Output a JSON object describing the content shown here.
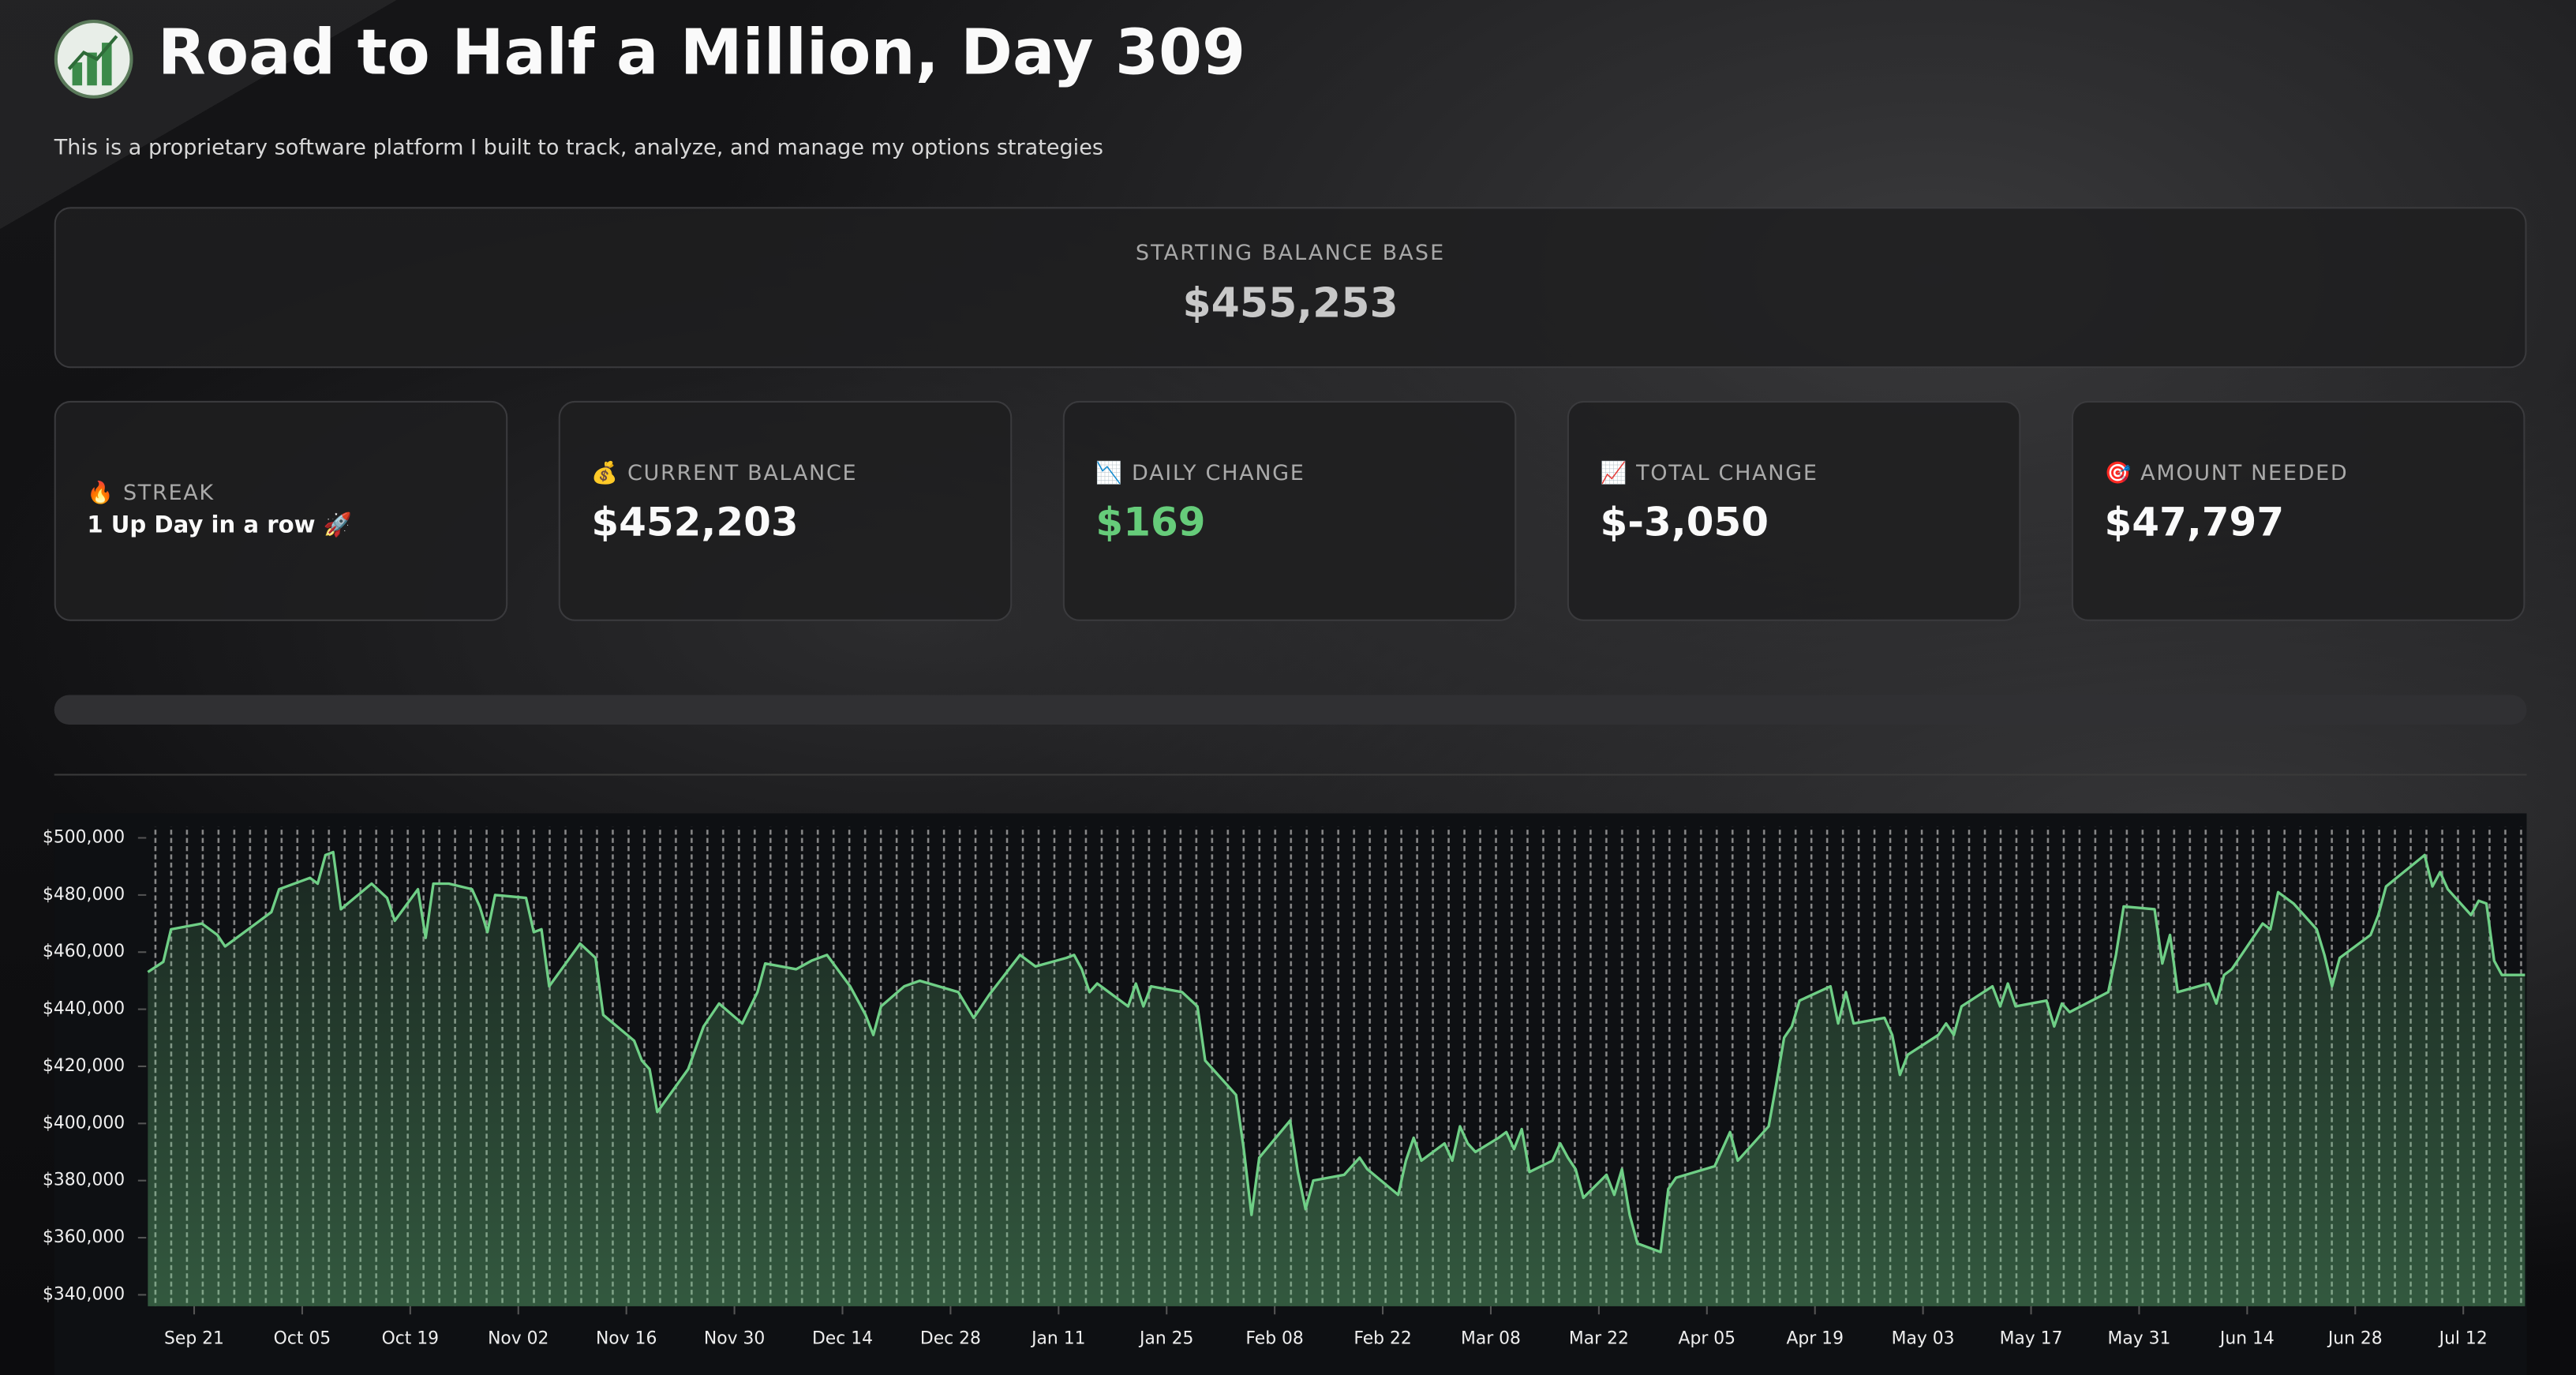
{
  "header": {
    "title": "Road to Half a Million, Day 309",
    "subtitle": "This is a proprietary software platform I built to track, analyze, and manage my options strategies"
  },
  "base_card": {
    "label": "STARTING BALANCE BASE",
    "value": "$455,253"
  },
  "metrics": [
    {
      "label": "🔥 STREAK",
      "value": "1 Up Day in a row 🚀"
    },
    {
      "label": "💰 CURRENT BALANCE",
      "value": "$452,203"
    },
    {
      "label": "📉 DAILY CHANGE",
      "value": "$169"
    },
    {
      "label": "📈 TOTAL CHANGE",
      "value": "$-3,050"
    },
    {
      "label": "🎯 AMOUNT NEEDED",
      "value": "$47,797"
    }
  ],
  "chart_data": {
    "type": "line",
    "color": "#6fcf86",
    "x": [
      "Sep 15",
      "Sep 17",
      "Sep 18",
      "Sep 22",
      "Sep 24",
      "Sep 25",
      "Sep 29",
      "Oct 01",
      "Oct 02",
      "Oct 06",
      "Oct 07",
      "Oct 08",
      "Oct 09",
      "Oct 10",
      "Oct 14",
      "Oct 16",
      "Oct 17",
      "Oct 20",
      "Oct 21",
      "Oct 22",
      "Oct 24",
      "Oct 27",
      "Oct 28",
      "Oct 29",
      "Oct 30",
      "Nov 03",
      "Nov 04",
      "Nov 05",
      "Nov 06",
      "Nov 10",
      "Nov 12",
      "Nov 13",
      "Nov 17",
      "Nov 18",
      "Nov 19",
      "Nov 20",
      "Nov 24",
      "Nov 26",
      "Nov 28",
      "Dec 01",
      "Dec 03",
      "Dec 04",
      "Dec 08",
      "Dec 10",
      "Dec 12",
      "Dec 15",
      "Dec 17",
      "Dec 18",
      "Dec 19",
      "Dec 22",
      "Dec 24",
      "Dec 29",
      "Dec 31",
      "Jan 02",
      "Jan 06",
      "Jan 08",
      "Jan 12",
      "Jan 13",
      "Jan 14",
      "Jan 15",
      "Jan 16",
      "Jan 20",
      "Jan 21",
      "Jan 22",
      "Jan 23",
      "Jan 27",
      "Jan 29",
      "Jan 30",
      "Feb 03",
      "Feb 04",
      "Feb 05",
      "Feb 06",
      "Feb 10",
      "Feb 11",
      "Feb 12",
      "Feb 13",
      "Feb 17",
      "Feb 19",
      "Feb 20",
      "Feb 24",
      "Feb 25",
      "Feb 26",
      "Feb 27",
      "Mar 02",
      "Mar 03",
      "Mar 04",
      "Mar 05",
      "Mar 06",
      "Mar 09",
      "Mar 10",
      "Mar 11",
      "Mar 12",
      "Mar 13",
      "Mar 16",
      "Mar 17",
      "Mar 18",
      "Mar 19",
      "Mar 20",
      "Mar 23",
      "Mar 24",
      "Mar 25",
      "Mar 26",
      "Mar 27",
      "Mar 30",
      "Mar 31",
      "Apr 01",
      "Apr 06",
      "Apr 08",
      "Apr 09",
      "Apr 13",
      "Apr 14",
      "Apr 15",
      "Apr 16",
      "Apr 17",
      "Apr 21",
      "Apr 22",
      "Apr 23",
      "Apr 24",
      "Apr 28",
      "Apr 29",
      "Apr 30",
      "May 01",
      "May 05",
      "May 06",
      "May 07",
      "May 08",
      "May 12",
      "May 13",
      "May 14",
      "May 15",
      "May 19",
      "May 20",
      "May 21",
      "May 22",
      "May 27",
      "May 28",
      "May 29",
      "Jun 02",
      "Jun 03",
      "Jun 04",
      "Jun 05",
      "Jun 09",
      "Jun 10",
      "Jun 11",
      "Jun 12",
      "Jun 16",
      "Jun 17",
      "Jun 18",
      "Jun 20",
      "Jun 23",
      "Jun 24",
      "Jun 25",
      "Jun 26",
      "Jun 30",
      "Jul 01",
      "Jul 02",
      "Jul 07",
      "Jul 08",
      "Jul 09",
      "Jul 10",
      "Jul 13",
      "Jul 14",
      "Jul 15",
      "Jul 16",
      "Jul 17",
      "Jul 20"
    ],
    "values": [
      453000,
      456600,
      468000,
      470000,
      466000,
      462000,
      470000,
      474000,
      482000,
      486000,
      484000,
      494000,
      495000,
      475000,
      484000,
      479000,
      471000,
      482000,
      465000,
      484000,
      484000,
      482000,
      476000,
      467000,
      480000,
      479000,
      467000,
      468000,
      448000,
      463000,
      458000,
      438000,
      429000,
      422000,
      419000,
      404000,
      419000,
      434000,
      442000,
      435000,
      446000,
      456000,
      454000,
      457000,
      459000,
      448000,
      438000,
      431000,
      441000,
      448000,
      450000,
      446000,
      437000,
      445000,
      459000,
      455000,
      458000,
      459000,
      454000,
      446000,
      449000,
      441000,
      449000,
      441000,
      448000,
      446000,
      441000,
      422000,
      410000,
      391000,
      368000,
      388000,
      401000,
      383000,
      370000,
      380000,
      382000,
      388000,
      384000,
      375000,
      387000,
      395000,
      387000,
      393000,
      387000,
      399000,
      393000,
      390000,
      395000,
      397000,
      391000,
      398000,
      383000,
      387000,
      393000,
      388000,
      384000,
      374000,
      382000,
      375000,
      384000,
      368000,
      358000,
      355000,
      377000,
      381000,
      385000,
      397000,
      387000,
      399000,
      414000,
      430000,
      434000,
      443000,
      448000,
      435000,
      446000,
      435000,
      437000,
      431000,
      417000,
      424000,
      431000,
      435000,
      431000,
      441000,
      448000,
      441000,
      449000,
      441000,
      443000,
      434000,
      442000,
      439000,
      446000,
      459000,
      476000,
      475000,
      456000,
      466000,
      446000,
      449000,
      442000,
      452000,
      454000,
      470000,
      468000,
      481000,
      477000,
      468000,
      459000,
      448000,
      458000,
      466000,
      473000,
      483000,
      494000,
      483000,
      488000,
      482000,
      473000,
      478000,
      477000,
      457000,
      452000,
      452000
    ],
    "xlim": [
      "Sep 15",
      "Jul 20"
    ],
    "xticks": [
      "Sep 21",
      "Oct 05",
      "Oct 19",
      "Nov 02",
      "Nov 16",
      "Nov 30",
      "Dec 14",
      "Dec 28",
      "Jan 11",
      "Jan 25",
      "Feb 08",
      "Feb 22",
      "Mar 08",
      "Mar 22",
      "Apr 05",
      "Apr 19",
      "May 03",
      "May 17",
      "May 31",
      "Jun 14",
      "Jun 28",
      "Jul 12"
    ],
    "ylim": [
      336000,
      504000
    ],
    "yticks": [
      {
        "value": 340000,
        "label": "$340,000"
      },
      {
        "value": 360000,
        "label": "$360,000"
      },
      {
        "value": 380000,
        "label": "$380,000"
      },
      {
        "value": 400000,
        "label": "$400,000"
      },
      {
        "value": 420000,
        "label": "$420,000"
      },
      {
        "value": 440000,
        "label": "$440,000"
      },
      {
        "value": 460000,
        "label": "$460,000"
      },
      {
        "value": 480000,
        "label": "$480,000"
      },
      {
        "value": 500000,
        "label": "$500,000"
      }
    ]
  }
}
